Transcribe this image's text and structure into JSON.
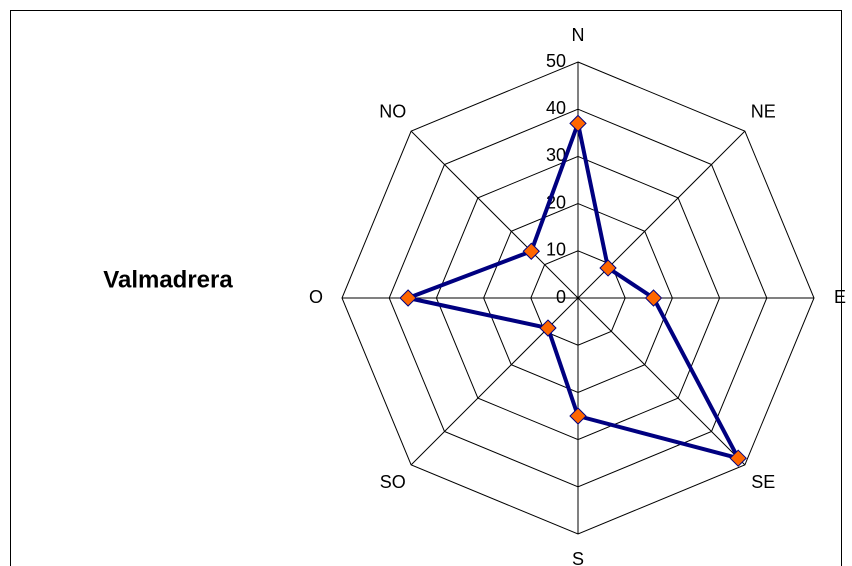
{
  "chart_data": {
    "type": "radar",
    "title": "Valmadrera",
    "categories": [
      "N",
      "NE",
      "E",
      "SE",
      "S",
      "SO",
      "O",
      "NO"
    ],
    "values": [
      37,
      9,
      16,
      48,
      25,
      9,
      36,
      14
    ],
    "color": "#000080",
    "marker_color": "#ff6600",
    "ylim": [
      0,
      50
    ],
    "yticks": [
      0,
      10,
      20,
      30,
      40,
      50
    ],
    "grid": true
  }
}
